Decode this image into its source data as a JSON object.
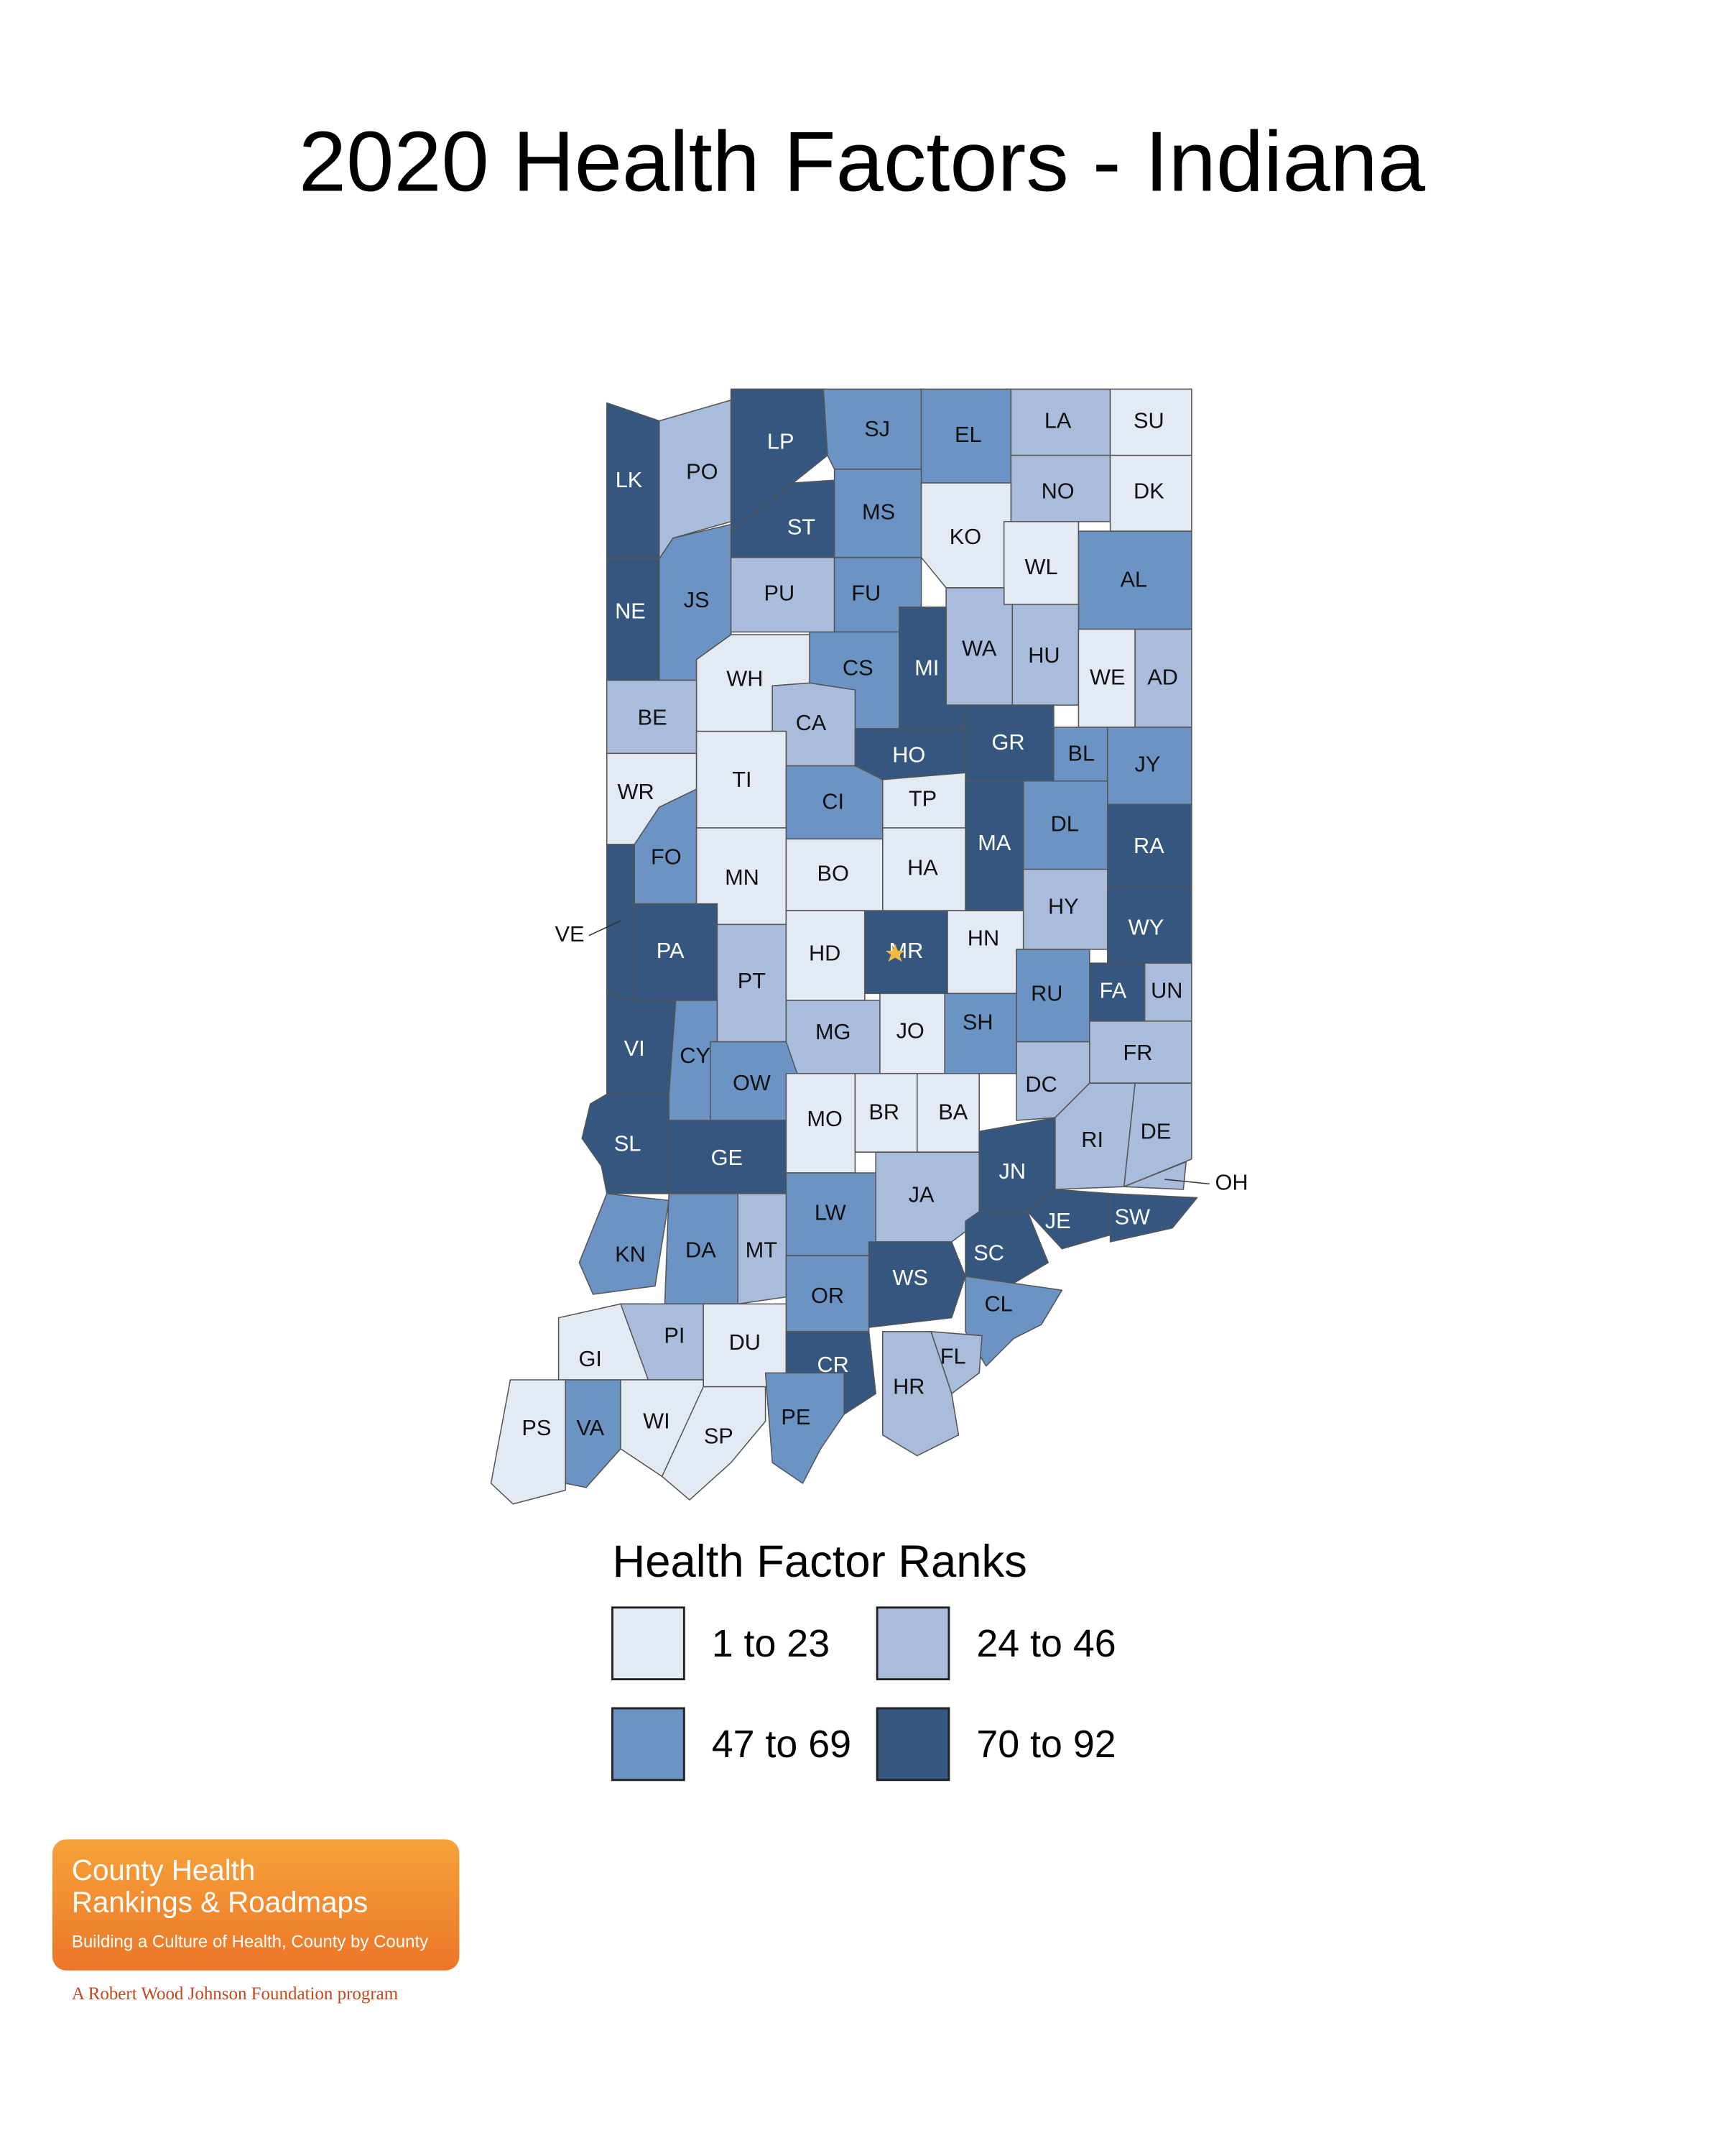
{
  "title": "2020 Health Factors - Indiana",
  "map": {
    "counties": [
      {
        "abbr": "LK",
        "group": 3
      },
      {
        "abbr": "PO",
        "group": 1
      },
      {
        "abbr": "LP",
        "group": 3
      },
      {
        "abbr": "SJ",
        "group": 2
      },
      {
        "abbr": "EL",
        "group": 2
      },
      {
        "abbr": "LA",
        "group": 1
      },
      {
        "abbr": "SU",
        "group": 0
      },
      {
        "abbr": "NO",
        "group": 1
      },
      {
        "abbr": "DK",
        "group": 0
      },
      {
        "abbr": "ST",
        "group": 3
      },
      {
        "abbr": "MS",
        "group": 2
      },
      {
        "abbr": "KO",
        "group": 0
      },
      {
        "abbr": "WL",
        "group": 0
      },
      {
        "abbr": "AL",
        "group": 2
      },
      {
        "abbr": "NE",
        "group": 3
      },
      {
        "abbr": "JS",
        "group": 2
      },
      {
        "abbr": "PU",
        "group": 1
      },
      {
        "abbr": "FU",
        "group": 2
      },
      {
        "abbr": "WA",
        "group": 1
      },
      {
        "abbr": "HU",
        "group": 1
      },
      {
        "abbr": "WE",
        "group": 0
      },
      {
        "abbr": "AD",
        "group": 1
      },
      {
        "abbr": "MI",
        "group": 3
      },
      {
        "abbr": "CS",
        "group": 2
      },
      {
        "abbr": "WH",
        "group": 0
      },
      {
        "abbr": "BE",
        "group": 1
      },
      {
        "abbr": "CA",
        "group": 1
      },
      {
        "abbr": "HO",
        "group": 3
      },
      {
        "abbr": "GR",
        "group": 3
      },
      {
        "abbr": "BL",
        "group": 2
      },
      {
        "abbr": "JY",
        "group": 2
      },
      {
        "abbr": "WR",
        "group": 0
      },
      {
        "abbr": "TI",
        "group": 0
      },
      {
        "abbr": "CI",
        "group": 2
      },
      {
        "abbr": "TP",
        "group": 0
      },
      {
        "abbr": "MA",
        "group": 3
      },
      {
        "abbr": "DL",
        "group": 2
      },
      {
        "abbr": "RA",
        "group": 3
      },
      {
        "abbr": "FO",
        "group": 2
      },
      {
        "abbr": "VE",
        "group": 3
      },
      {
        "abbr": "MN",
        "group": 0
      },
      {
        "abbr": "BO",
        "group": 0
      },
      {
        "abbr": "HA",
        "group": 0
      },
      {
        "abbr": "HY",
        "group": 1
      },
      {
        "abbr": "WY",
        "group": 3
      },
      {
        "abbr": "PA",
        "group": 3
      },
      {
        "abbr": "PT",
        "group": 1
      },
      {
        "abbr": "HD",
        "group": 0
      },
      {
        "abbr": "MR",
        "group": 3
      },
      {
        "abbr": "HN",
        "group": 0
      },
      {
        "abbr": "RU",
        "group": 2
      },
      {
        "abbr": "FA",
        "group": 3
      },
      {
        "abbr": "UN",
        "group": 1
      },
      {
        "abbr": "VI",
        "group": 3
      },
      {
        "abbr": "CY",
        "group": 2
      },
      {
        "abbr": "OW",
        "group": 2
      },
      {
        "abbr": "MG",
        "group": 1
      },
      {
        "abbr": "JO",
        "group": 0
      },
      {
        "abbr": "SH",
        "group": 2
      },
      {
        "abbr": "FR",
        "group": 1
      },
      {
        "abbr": "DC",
        "group": 1
      },
      {
        "abbr": "SL",
        "group": 3
      },
      {
        "abbr": "GE",
        "group": 3
      },
      {
        "abbr": "MO",
        "group": 0
      },
      {
        "abbr": "BR",
        "group": 0
      },
      {
        "abbr": "BA",
        "group": 0
      },
      {
        "abbr": "RI",
        "group": 1
      },
      {
        "abbr": "DE",
        "group": 1
      },
      {
        "abbr": "OH",
        "group": 1
      },
      {
        "abbr": "JN",
        "group": 3
      },
      {
        "abbr": "JA",
        "group": 1
      },
      {
        "abbr": "LW",
        "group": 2
      },
      {
        "abbr": "KN",
        "group": 2
      },
      {
        "abbr": "DA",
        "group": 2
      },
      {
        "abbr": "MT",
        "group": 1
      },
      {
        "abbr": "JE",
        "group": 3
      },
      {
        "abbr": "SW",
        "group": 3
      },
      {
        "abbr": "SC",
        "group": 3
      },
      {
        "abbr": "WS",
        "group": 3
      },
      {
        "abbr": "OR",
        "group": 2
      },
      {
        "abbr": "CL",
        "group": 2
      },
      {
        "abbr": "GI",
        "group": 0
      },
      {
        "abbr": "PI",
        "group": 1
      },
      {
        "abbr": "DU",
        "group": 0
      },
      {
        "abbr": "CR",
        "group": 3
      },
      {
        "abbr": "FL",
        "group": 1
      },
      {
        "abbr": "HR",
        "group": 1
      },
      {
        "abbr": "PS",
        "group": 0
      },
      {
        "abbr": "VA",
        "group": 2
      },
      {
        "abbr": "WI",
        "group": 0
      },
      {
        "abbr": "SP",
        "group": 0
      },
      {
        "abbr": "PE",
        "group": 2
      }
    ]
  },
  "legend": {
    "title": "Health Factor Ranks",
    "items": [
      {
        "label": "1 to 23",
        "color": "#e4eaf4"
      },
      {
        "label": "24 to 46",
        "color": "#a9bcdb"
      },
      {
        "label": "47 to 69",
        "color": "#6b93c4"
      },
      {
        "label": "70 to 92",
        "color": "#35577f"
      }
    ]
  },
  "logo": {
    "line1": "County Health",
    "line2": "Rankings & Roadmaps",
    "tagline": "Building a Culture of Health, County by County",
    "footer": "A Robert Wood Johnson Foundation program"
  }
}
